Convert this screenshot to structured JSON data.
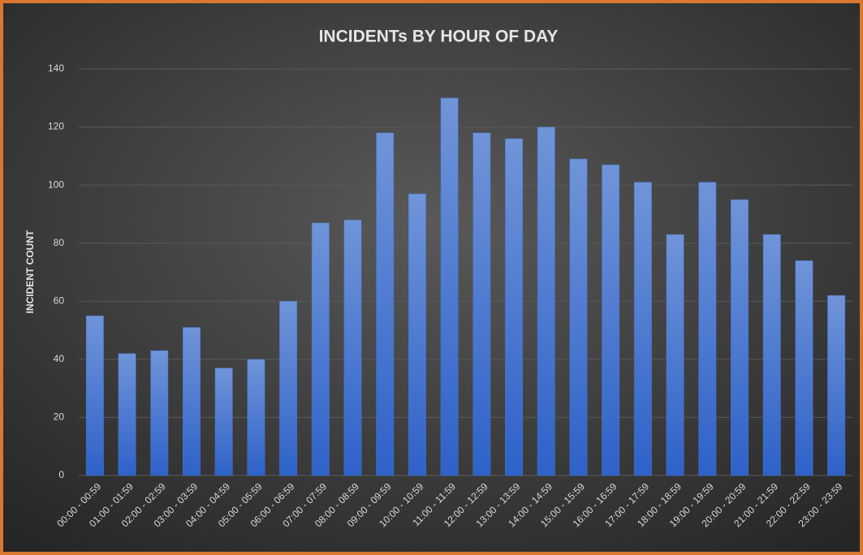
{
  "chart_data": {
    "type": "bar",
    "title": "INCIDENTs BY HOUR OF DAY",
    "y_label": "INCIDENT COUNT",
    "categories": [
      "00:00 - 00:59",
      "01:00 - 01:59",
      "02:00 - 02:59",
      "03:00 - 03:59",
      "04:00 - 04:59",
      "05:00 - 05:59",
      "06:00 - 06:59",
      "07:00 - 07:59",
      "08:00 - 08:59",
      "09:00 - 09:59",
      "10:00 - 10:59",
      "11:00 - 11:59",
      "12:00 - 12:59",
      "13:00 - 13:59",
      "14:00 - 14:59",
      "15:00 - 15:59",
      "16:00 - 16:59",
      "17:00 - 17:59",
      "18:00 - 18:59",
      "19:00 - 19:59",
      "20:00 - 20:59",
      "21:00 - 21:59",
      "22:00 - 22:59",
      "23:00 - 23:59"
    ],
    "values": [
      55,
      42,
      43,
      51,
      37,
      40,
      60,
      87,
      88,
      118,
      97,
      130,
      118,
      116,
      120,
      109,
      107,
      101,
      83,
      101,
      95,
      83,
      74,
      62
    ],
    "color": "#4472c4",
    "ylim": [
      0,
      140
    ],
    "yticks": [
      0,
      20,
      40,
      60,
      80,
      100,
      120,
      140
    ],
    "grid": true
  }
}
